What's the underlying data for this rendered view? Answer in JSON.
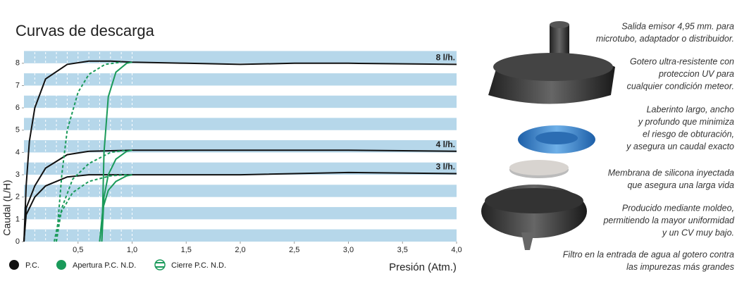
{
  "chart_data": {
    "type": "line",
    "title": "Curvas de descarga",
    "x_label": "Presión (Atm.)",
    "y_label": "Caudal (L/H)",
    "xlim": [
      0,
      4
    ],
    "ylim": [
      0,
      8.5
    ],
    "xticks": [
      {
        "value": 0.5,
        "label": "0,5"
      },
      {
        "value": 1.0,
        "label": "1,0"
      },
      {
        "value": 1.5,
        "label": "1,5"
      },
      {
        "value": 2.0,
        "label": "2,0"
      },
      {
        "value": 2.5,
        "label": "2,5"
      },
      {
        "value": 3.0,
        "label": "3,0"
      },
      {
        "value": 3.5,
        "label": "3,5"
      },
      {
        "value": 4.0,
        "label": "4,0"
      }
    ],
    "yticks": [
      0,
      1,
      2,
      3,
      4,
      5,
      6,
      7,
      8
    ],
    "x_gridlines": [
      0.1,
      0.2,
      0.3,
      0.4,
      0.5,
      0.6,
      0.7,
      0.8,
      0.9,
      1.0
    ],
    "curve_labels": [
      "8 l/h.",
      "4 l/h.",
      "3 l/h."
    ],
    "series": [
      {
        "name": "P.C.",
        "color": "#111111",
        "dash": false,
        "curves": [
          {
            "x": [
              0,
              0.02,
              0.05,
              0.1,
              0.2,
              0.4,
              0.6,
              0.8,
              1.0,
              1.5,
              2.0,
              2.5,
              3.0,
              4.0
            ],
            "values": [
              0,
              2.5,
              4.5,
              6,
              7.3,
              7.95,
              8.1,
              8.1,
              8.05,
              8.0,
              7.95,
              8.0,
              8.0,
              7.95
            ]
          },
          {
            "x": [
              0,
              0.02,
              0.1,
              0.2,
              0.4,
              0.6,
              1.0,
              2.0,
              3.0,
              4.0
            ],
            "values": [
              0,
              1.5,
              2.5,
              3.3,
              3.9,
              4.05,
              4.1,
              4.1,
              4.1,
              4.05
            ]
          },
          {
            "x": [
              0,
              0.02,
              0.1,
              0.2,
              0.4,
              0.6,
              1.0,
              2.0,
              3.0,
              4.0
            ],
            "values": [
              0,
              1.2,
              2,
              2.5,
              2.9,
              3.0,
              3.0,
              3.0,
              3.1,
              3.05
            ]
          }
        ]
      },
      {
        "name": "Apertura P.C. N.D.",
        "color": "#1a9a5a",
        "dash": false,
        "curves": [
          {
            "x": [
              0.72,
              0.74,
              0.78,
              0.85,
              0.95,
              1.0
            ],
            "values": [
              0,
              4,
              6.5,
              7.6,
              8.0,
              8.05
            ]
          },
          {
            "x": [
              0.72,
              0.74,
              0.78,
              0.85,
              0.95,
              1.0
            ],
            "values": [
              0,
              2,
              3,
              3.7,
              4.05,
              4.1
            ]
          },
          {
            "x": [
              0.7,
              0.73,
              0.78,
              0.85,
              0.95,
              1.0
            ],
            "values": [
              0,
              1.5,
              2.3,
              2.7,
              2.95,
              3.0
            ]
          }
        ]
      },
      {
        "name": "Cierre P.C. N.D.",
        "color": "#1a9a5a",
        "dash": true,
        "curves": [
          {
            "x": [
              0.3,
              0.35,
              0.4,
              0.5,
              0.6,
              0.75,
              0.9
            ],
            "values": [
              0,
              3,
              5,
              6.7,
              7.5,
              7.95,
              8.05
            ]
          },
          {
            "x": [
              0.3,
              0.35,
              0.45,
              0.6,
              0.8,
              0.95
            ],
            "values": [
              0,
              1.5,
              2.8,
              3.5,
              4.0,
              4.1
            ]
          },
          {
            "x": [
              0.28,
              0.33,
              0.45,
              0.6,
              0.8,
              0.95
            ],
            "values": [
              0,
              1.2,
              2.2,
              2.7,
              2.95,
              3.0
            ]
          }
        ]
      }
    ]
  },
  "notes": [
    [
      "Salida emisor 4,95 mm. para",
      "microtubo, adaptador o distribuidor."
    ],
    [
      "Gotero ultra-resistente con",
      "proteccion UV para",
      "cualquier condición meteor."
    ],
    [
      "Laberinto largo, ancho",
      "y profundo que minimiza",
      "el riesgo de obturación,",
      "y asegura un caudal exacto"
    ],
    [
      "Membrana de silicona inyectada",
      "que asegura una larga vida"
    ],
    [
      "Producido mediante moldeo,",
      "permitiendo la mayor uniformidad",
      "y un CV muy bajo."
    ],
    [
      "Filtro en la entrada de agua al gotero contra",
      "las impurezas más grandes"
    ]
  ]
}
